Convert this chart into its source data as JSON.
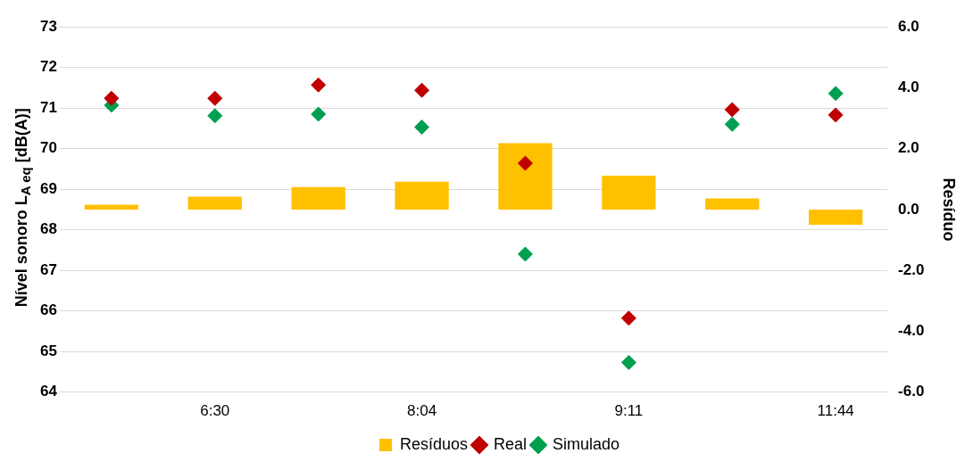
{
  "chart_data": {
    "type": "bar",
    "categories": [
      null,
      "6:30",
      null,
      "8:04",
      null,
      "9:11",
      null,
      "11:44"
    ],
    "series": [
      {
        "name": "Resíduos",
        "axis": "y2",
        "color": "#ffc000",
        "values": [
          0.16,
          0.42,
          0.74,
          0.91,
          2.18,
          1.11,
          0.36,
          -0.5
        ]
      },
      {
        "name": "Real",
        "type": "scatter",
        "color": "#c00000",
        "values": [
          71.24,
          71.24,
          71.57,
          71.44,
          69.64,
          65.82,
          70.96,
          70.83
        ]
      },
      {
        "name": "Simulado",
        "type": "scatter",
        "color": "#00a050",
        "values": [
          71.07,
          70.81,
          70.85,
          70.53,
          67.4,
          64.73,
          70.6,
          71.36
        ]
      }
    ],
    "ylabel": "Nível sonoro L$_{A eq}$ [dB(A)]",
    "y2label": "Resíduo",
    "ylim": [
      64,
      73
    ],
    "yticks": [
      64,
      65,
      66,
      67,
      68,
      69,
      70,
      71,
      72,
      73
    ],
    "y2lim": [
      -6,
      6
    ],
    "y2ticks": [
      {
        "value": -6,
        "label": "-6.0"
      },
      {
        "value": -4,
        "label": "-4.0"
      },
      {
        "value": -2,
        "label": "-2.0"
      },
      {
        "value": 0,
        "label": "0.0"
      },
      {
        "value": 2,
        "label": "2.0"
      },
      {
        "value": 4,
        "label": "4.0"
      },
      {
        "value": 6,
        "label": "6.0"
      }
    ],
    "grid": "y",
    "legend": "bottom",
    "marker": "diamond"
  }
}
